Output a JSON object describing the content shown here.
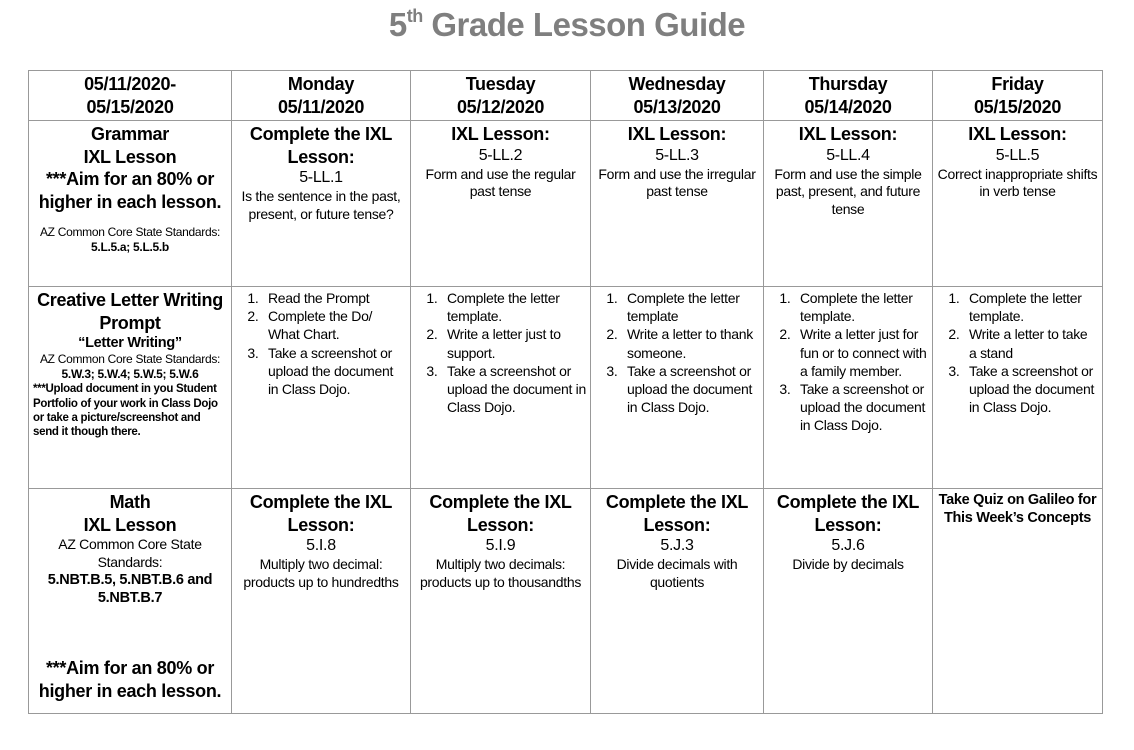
{
  "title": {
    "number": "5",
    "suffix": "th",
    "text": "Grade Lesson Guide"
  },
  "header": [
    "05/11/2020-\n05/15/2020",
    "Monday\n05/11/2020",
    "Tuesday\n05/12/2020",
    "Wednesday\n05/13/2020",
    "Thursday\n05/14/2020",
    "Friday\n05/15/2020"
  ],
  "rows": [
    {
      "name": "grammar",
      "cells": [
        {
          "blocks": [
            {
              "s": "b18",
              "t": "Grammar"
            },
            {
              "s": "b18",
              "t": "IXL Lesson"
            },
            {
              "s": "b18",
              "t": "***Aim for an 80% or higher in each lesson."
            },
            {
              "s": "gap-small",
              "t": ""
            },
            {
              "s": "n12",
              "t": "AZ Common Core State Standards:"
            },
            {
              "s": "b12",
              "t": "5.L.5.a; 5.L.5.b"
            }
          ]
        },
        {
          "blocks": [
            {
              "s": "b18",
              "t": "Complete the IXL Lesson:"
            },
            {
              "s": "n16",
              "t": "5-LL.1"
            },
            {
              "s": "n14",
              "t": "Is the sentence in the past, present, or future tense?"
            }
          ]
        },
        {
          "blocks": [
            {
              "s": "b18",
              "t": "IXL Lesson:"
            },
            {
              "s": "n16",
              "t": "5-LL.2"
            },
            {
              "s": "n14",
              "t": "Form and use the regular past tense"
            }
          ]
        },
        {
          "blocks": [
            {
              "s": "b18",
              "t": "IXL Lesson:"
            },
            {
              "s": "n16",
              "t": "5-LL.3"
            },
            {
              "s": "n14",
              "t": "Form and use the irregular past tense"
            }
          ]
        },
        {
          "blocks": [
            {
              "s": "b18",
              "t": "IXL Lesson:"
            },
            {
              "s": "n16",
              "t": "5-LL.4"
            },
            {
              "s": "n14",
              "t": "Form and use the simple past, present, and future tense"
            }
          ]
        },
        {
          "blocks": [
            {
              "s": "b18",
              "t": "IXL Lesson:"
            },
            {
              "s": "n16",
              "t": "5-LL.5"
            },
            {
              "s": "n14",
              "t": "Correct inappropriate shifts in verb tense"
            }
          ]
        }
      ]
    },
    {
      "name": "writing",
      "cells": [
        {
          "blocks": [
            {
              "s": "b18",
              "t": "Creative Letter Writing Prompt"
            },
            {
              "s": "b14",
              "t": "“Letter Writing”"
            },
            {
              "s": "n12",
              "t": "AZ Common Core State Standards:"
            },
            {
              "s": "b12",
              "t": "5.W.3; 5.W.4; 5.W.5; 5.W.6"
            },
            {
              "s": "b11",
              "t": "***Upload document in you Student Portfolio of your work in Class Dojo or take a picture/screenshot and send it though there."
            }
          ]
        },
        {
          "list": [
            "Read the Prompt",
            "Complete the Do/ What Chart.",
            "Take a screenshot or upload the document in Class Dojo."
          ]
        },
        {
          "list": [
            "Complete the letter template.",
            "Write a letter just to support.",
            "Take a screenshot or upload the document in Class Dojo."
          ]
        },
        {
          "list": [
            "Complete the letter template",
            "Write a letter to thank someone.",
            "Take a screenshot or upload the document in Class Dojo."
          ]
        },
        {
          "list": [
            "Complete the letter template.",
            "Write a letter just for fun or to connect with a family member.",
            "Take a screenshot or upload the document in Class Dojo."
          ]
        },
        {
          "list": [
            "Complete the letter template.",
            "Write a letter to take a stand",
            "Take a screenshot or upload the document in Class Dojo."
          ]
        }
      ]
    },
    {
      "name": "math",
      "cells": [
        {
          "blocks": [
            {
              "s": "b18",
              "t": "Math"
            },
            {
              "s": "b18",
              "t": "IXL Lesson"
            },
            {
              "s": "n14",
              "t": "AZ Common Core State Standards:"
            },
            {
              "s": "b14",
              "t": "5.NBT.B.5, 5.NBT.B.6 and 5.NBT.B.7"
            },
            {
              "s": "gap",
              "t": ""
            },
            {
              "s": "b18",
              "t": "***Aim for an 80% or higher in each lesson."
            }
          ]
        },
        {
          "blocks": [
            {
              "s": "b18",
              "t": "Complete the IXL Lesson:"
            },
            {
              "s": "n16",
              "t": "5.I.8"
            },
            {
              "s": "n14",
              "t": "Multiply two decimal: products up to hundredths"
            }
          ]
        },
        {
          "blocks": [
            {
              "s": "b18",
              "t": "Complete the IXL Lesson:"
            },
            {
              "s": "n16",
              "t": "5.I.9"
            },
            {
              "s": "n14",
              "t": "Multiply two decimals: products up to thousandths"
            }
          ]
        },
        {
          "blocks": [
            {
              "s": "b18",
              "t": "Complete the IXL Lesson:"
            },
            {
              "s": "n16",
              "t": "5.J.3"
            },
            {
              "s": "n14",
              "t": "Divide decimals with quotients"
            }
          ]
        },
        {
          "blocks": [
            {
              "s": "b18",
              "t": "Complete the IXL Lesson:"
            },
            {
              "s": "n16",
              "t": "5.J.6"
            },
            {
              "s": "n14",
              "t": "Divide by decimals"
            }
          ]
        },
        {
          "blocks": [
            {
              "s": "b14",
              "t": "Take Quiz on Galileo for This Week’s Concepts"
            }
          ]
        }
      ]
    }
  ]
}
